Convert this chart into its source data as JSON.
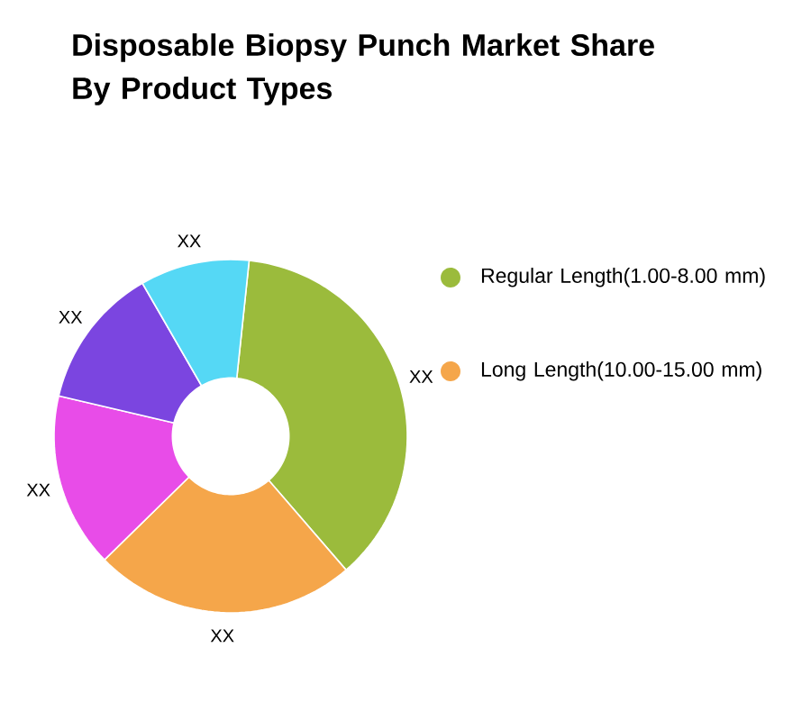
{
  "chart_data": {
    "type": "donut",
    "title": "Disposable Biopsy Punch Market Share By Product Types",
    "categories": [
      "Regular Length(1.00-8.00 mm)",
      "Long Length(10.00-15.00 mm)",
      null,
      null,
      null
    ],
    "values": [
      37,
      24,
      16,
      13,
      10
    ],
    "colors": [
      "#9bbb3c",
      "#f5a64a",
      "#e84ce8",
      "#7b45e0",
      "#55d8f5"
    ],
    "value_labels": [
      "XX",
      "XX",
      "XX",
      "XX",
      "XX"
    ],
    "legend": "right"
  }
}
